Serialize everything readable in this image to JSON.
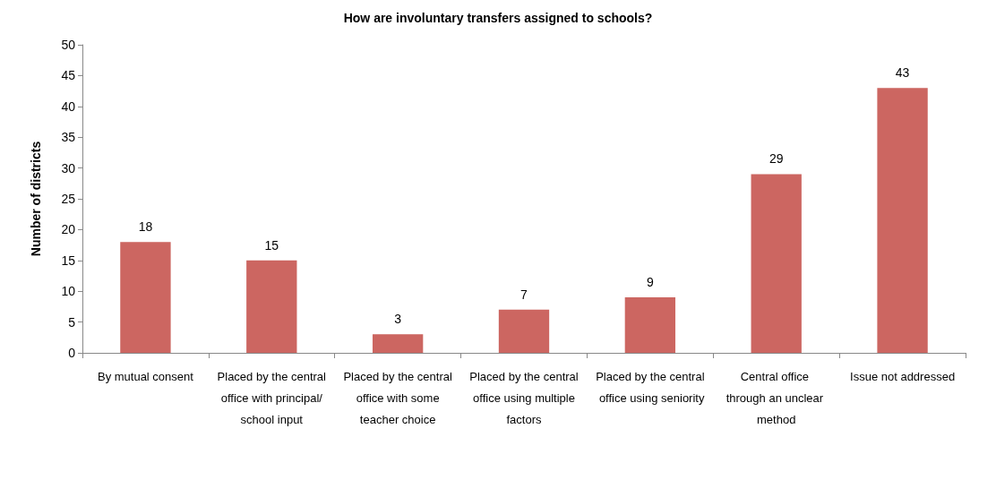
{
  "chart_data": {
    "type": "bar",
    "title": "How are involuntary transfers assigned to schools?",
    "ylabel": "Number of districts",
    "categories": [
      "By mutual consent",
      "Placed by the central office with principal/ school input",
      "Placed by the central office with some teacher choice",
      "Placed by the central office using multiple factors",
      "Placed by the central office using seniority",
      "Central office through an unclear method",
      "Issue not addressed"
    ],
    "values": [
      18,
      15,
      3,
      7,
      9,
      29,
      43
    ],
    "color": "#cc6661",
    "ylim": [
      0,
      50
    ],
    "yticks": [
      0,
      5,
      10,
      15,
      20,
      25,
      30,
      35,
      40,
      45,
      50
    ],
    "data_labels": true,
    "grid": false
  }
}
